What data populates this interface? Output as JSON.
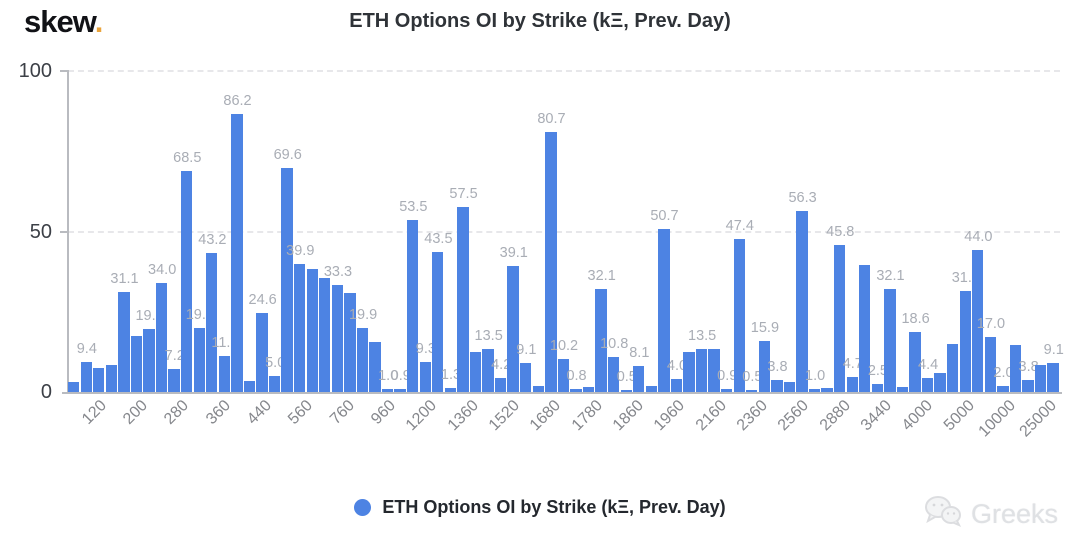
{
  "logo": {
    "text": "skew",
    "dot": "."
  },
  "header": {
    "title": "ETH Options OI by Strike (kΞ, Prev. Day)"
  },
  "legend": {
    "marker_color": "#4d83e3",
    "label": "ETH Options OI by Strike (kΞ, Prev. Day)"
  },
  "watermark": {
    "icon": "wechat-icon",
    "text": "Greeks"
  },
  "chart_data": {
    "type": "bar",
    "title": "ETH Options OI by Strike (kΞ, Prev. Day)",
    "ylabel": "",
    "xlabel": "",
    "ylim": [
      0,
      100
    ],
    "yticks": [
      "0",
      "50",
      "100"
    ],
    "grid": "dashed horizontal at 50 and 100",
    "legend_position": "bottom center",
    "bar_color": "#4d83e3",
    "label_color": "#a9adb5",
    "x_tick_labels": [
      "120",
      "200",
      "280",
      "360",
      "440",
      "560",
      "760",
      "960",
      "1200",
      "1360",
      "1520",
      "1680",
      "1780",
      "1860",
      "1960",
      "2160",
      "2360",
      "2560",
      "2880",
      "3440",
      "4000",
      "5000",
      "10000",
      "25000"
    ],
    "bars": [
      {
        "v": 3.2,
        "l": ""
      },
      {
        "v": 9.4,
        "l": "9.4"
      },
      {
        "v": 7.5,
        "l": ""
      },
      {
        "v": 8.5,
        "l": ""
      },
      {
        "v": 31.1,
        "l": "31.1"
      },
      {
        "v": 17.5,
        "l": ""
      },
      {
        "v": 19.6,
        "l": "19.6"
      },
      {
        "v": 34.0,
        "l": "34.0"
      },
      {
        "v": 7.2,
        "l": "7.2"
      },
      {
        "v": 68.5,
        "l": "68.5"
      },
      {
        "v": 19.8,
        "l": "19.8"
      },
      {
        "v": 43.2,
        "l": "43.2"
      },
      {
        "v": 11.2,
        "l": "11.2"
      },
      {
        "v": 86.2,
        "l": "86.2"
      },
      {
        "v": 3.5,
        "l": ""
      },
      {
        "v": 24.6,
        "l": "24.6"
      },
      {
        "v": 5.0,
        "l": "5.0"
      },
      {
        "v": 69.6,
        "l": "69.6"
      },
      {
        "v": 39.9,
        "l": "39.9"
      },
      {
        "v": 38.3,
        "l": ""
      },
      {
        "v": 35.5,
        "l": ""
      },
      {
        "v": 33.3,
        "l": "33.3"
      },
      {
        "v": 30.8,
        "l": ""
      },
      {
        "v": 19.9,
        "l": "19.9"
      },
      {
        "v": 15.5,
        "l": ""
      },
      {
        "v": 1.0,
        "l": "1.0"
      },
      {
        "v": 0.9,
        "l": "0.9"
      },
      {
        "v": 53.5,
        "l": "53.5"
      },
      {
        "v": 9.3,
        "l": "9.3"
      },
      {
        "v": 43.5,
        "l": "43.5"
      },
      {
        "v": 1.3,
        "l": "1.3"
      },
      {
        "v": 57.5,
        "l": "57.5"
      },
      {
        "v": 12.5,
        "l": ""
      },
      {
        "v": 13.5,
        "l": "13.5"
      },
      {
        "v": 4.2,
        "l": "4.2"
      },
      {
        "v": 39.1,
        "l": "39.1"
      },
      {
        "v": 9.1,
        "l": "9.1"
      },
      {
        "v": 2.0,
        "l": ""
      },
      {
        "v": 80.7,
        "l": "80.7"
      },
      {
        "v": 10.2,
        "l": "10.2"
      },
      {
        "v": 0.8,
        "l": "0.8"
      },
      {
        "v": 1.5,
        "l": ""
      },
      {
        "v": 32.1,
        "l": "32.1"
      },
      {
        "v": 10.8,
        "l": "10.8"
      },
      {
        "v": 0.5,
        "l": "0.5"
      },
      {
        "v": 8.1,
        "l": "8.1"
      },
      {
        "v": 2.0,
        "l": ""
      },
      {
        "v": 50.7,
        "l": "50.7"
      },
      {
        "v": 4.0,
        "l": "4.0"
      },
      {
        "v": 12.4,
        "l": ""
      },
      {
        "v": 13.5,
        "l": "13.5"
      },
      {
        "v": 13.4,
        "l": ""
      },
      {
        "v": 0.9,
        "l": "0.9"
      },
      {
        "v": 47.4,
        "l": "47.4"
      },
      {
        "v": 0.5,
        "l": "0.5"
      },
      {
        "v": 15.9,
        "l": "15.9"
      },
      {
        "v": 3.8,
        "l": "3.8"
      },
      {
        "v": 3.0,
        "l": ""
      },
      {
        "v": 56.3,
        "l": "56.3"
      },
      {
        "v": 1.0,
        "l": "1.0"
      },
      {
        "v": 1.2,
        "l": ""
      },
      {
        "v": 45.8,
        "l": "45.8"
      },
      {
        "v": 4.7,
        "l": "4.7"
      },
      {
        "v": 39.5,
        "l": ""
      },
      {
        "v": 2.5,
        "l": "2.5"
      },
      {
        "v": 32.1,
        "l": "32.1"
      },
      {
        "v": 1.5,
        "l": ""
      },
      {
        "v": 18.6,
        "l": "18.6"
      },
      {
        "v": 4.4,
        "l": "4.4"
      },
      {
        "v": 6.0,
        "l": ""
      },
      {
        "v": 15.0,
        "l": ""
      },
      {
        "v": 31.4,
        "l": "31.4"
      },
      {
        "v": 44.0,
        "l": "44.0"
      },
      {
        "v": 17.0,
        "l": "17.0"
      },
      {
        "v": 2.0,
        "l": "2.0"
      },
      {
        "v": 14.5,
        "l": ""
      },
      {
        "v": 3.8,
        "l": "3.8"
      },
      {
        "v": 8.4,
        "l": ""
      },
      {
        "v": 9.1,
        "l": "9.1"
      }
    ]
  }
}
